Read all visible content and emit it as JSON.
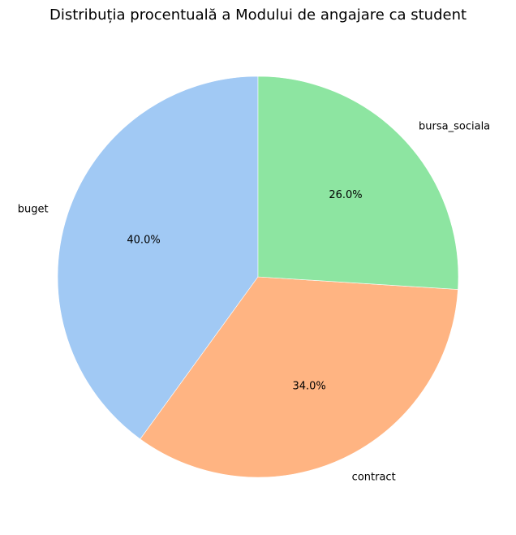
{
  "chart_data": {
    "type": "pie",
    "title": "Distribuția procentuală a Modului de angajare ca student",
    "categories": [
      "buget",
      "contract",
      "bursa_sociala"
    ],
    "values": [
      40.0,
      34.0,
      26.0
    ],
    "percent_labels": [
      "40.0%",
      "34.0%",
      "26.0%"
    ],
    "colors": [
      "#a1c9f4",
      "#ffb482",
      "#8de5a1"
    ],
    "start_angle_deg": 90,
    "direction": "counterclockwise",
    "legend": "none"
  }
}
